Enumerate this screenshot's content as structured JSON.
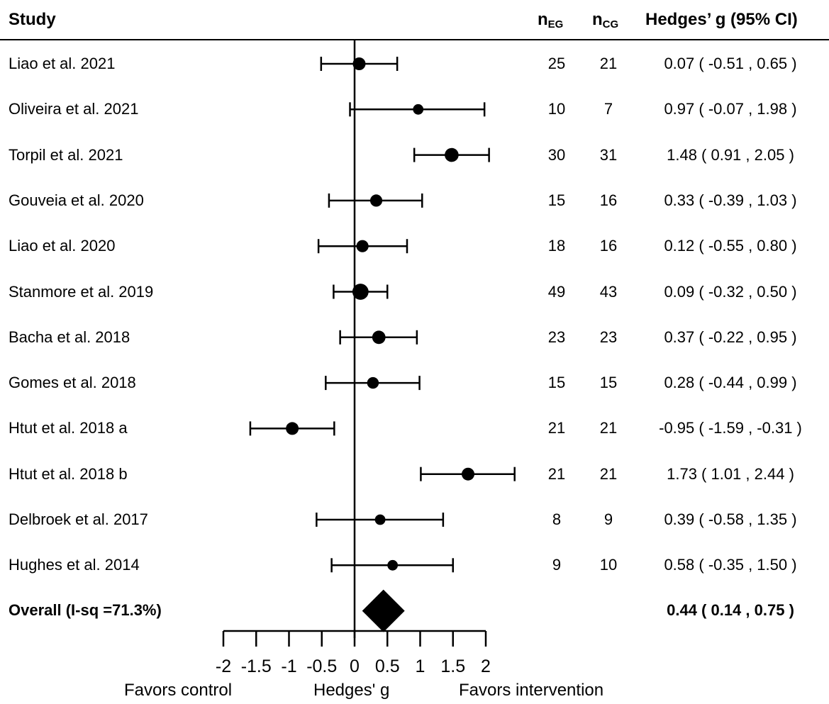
{
  "chart_data": {
    "type": "forest",
    "headers": {
      "study": "Study",
      "n_eg": {
        "base": "n",
        "sub": "EG"
      },
      "n_cg": {
        "base": "n",
        "sub": "CG"
      },
      "effect": "Hedges’ g (95% CI)"
    },
    "studies": [
      {
        "study": "Liao et al. 2021",
        "n_eg": "25",
        "n_cg": "21",
        "g": 0.07,
        "lo": -0.51,
        "hi": 0.65,
        "ci_text": "0.07 ( -0.51 ,  0.65 )",
        "weight": 1.0
      },
      {
        "study": "Oliveira et al. 2021",
        "n_eg": "10",
        "n_cg": "7",
        "g": 0.97,
        "lo": -0.07,
        "hi": 1.98,
        "ci_text": "0.97 ( -0.07 ,  1.98 )",
        "weight": 0.8
      },
      {
        "study": "Torpil et al. 2021",
        "n_eg": "30",
        "n_cg": "31",
        "g": 1.48,
        "lo": 0.91,
        "hi": 2.05,
        "ci_text": "1.48 ( 0.91 ,  2.05 )",
        "weight": 1.1
      },
      {
        "study": "Gouveia et al. 2020",
        "n_eg": "15",
        "n_cg": "16",
        "g": 0.33,
        "lo": -0.39,
        "hi": 1.03,
        "ci_text": "0.33 ( -0.39 ,  1.03 )",
        "weight": 0.95
      },
      {
        "study": "Liao et al. 2020",
        "n_eg": "18",
        "n_cg": "16",
        "g": 0.12,
        "lo": -0.55,
        "hi": 0.8,
        "ci_text": "0.12 ( -0.55 ,  0.80 )",
        "weight": 0.95
      },
      {
        "study": "Stanmore et al. 2019",
        "n_eg": "49",
        "n_cg": "43",
        "g": 0.09,
        "lo": -0.32,
        "hi": 0.5,
        "ci_text": "0.09 ( -0.32 ,  0.50 )",
        "weight": 1.3
      },
      {
        "study": "Bacha et al. 2018",
        "n_eg": "23",
        "n_cg": "23",
        "g": 0.37,
        "lo": -0.22,
        "hi": 0.95,
        "ci_text": "0.37 ( -0.22 ,  0.95 )",
        "weight": 1.05
      },
      {
        "study": "Gomes et al. 2018",
        "n_eg": "15",
        "n_cg": "15",
        "g": 0.28,
        "lo": -0.44,
        "hi": 0.99,
        "ci_text": "0.28 ( -0.44 ,  0.99 )",
        "weight": 0.9
      },
      {
        "study": "Htut et al. 2018 a",
        "n_eg": "21",
        "n_cg": "21",
        "g": -0.95,
        "lo": -1.59,
        "hi": -0.31,
        "ci_text": "-0.95 ( -1.59 ,  -0.31 )",
        "weight": 1.0
      },
      {
        "study": "Htut et al. 2018 b",
        "n_eg": "21",
        "n_cg": "21",
        "g": 1.73,
        "lo": 1.01,
        "hi": 2.44,
        "ci_text": "1.73 ( 1.01 ,  2.44 )",
        "weight": 1.0
      },
      {
        "study": "Delbroek et al. 2017",
        "n_eg": "8",
        "n_cg": "9",
        "g": 0.39,
        "lo": -0.58,
        "hi": 1.35,
        "ci_text": "0.39 ( -0.58 ,  1.35 )",
        "weight": 0.8
      },
      {
        "study": "Hughes et al. 2014",
        "n_eg": "9",
        "n_cg": "10",
        "g": 0.58,
        "lo": -0.35,
        "hi": 1.5,
        "ci_text": "0.58 ( -0.35 ,  1.50 )",
        "weight": 0.8
      }
    ],
    "overall": {
      "label": "Overall (I-sq =71.3%)",
      "g": 0.44,
      "lo": 0.14,
      "hi": 0.75,
      "ci_text": "0.44 ( 0.14 ,  0.75 )"
    },
    "x_axis": {
      "ticks": [
        -2,
        -1.5,
        -1,
        -0.5,
        0,
        0.5,
        1,
        1.5,
        2
      ],
      "tick_labels": [
        "-2",
        "-1.5",
        "-1",
        "-0.5",
        "0",
        "0.5",
        "1",
        "1.5",
        "2"
      ],
      "label": "Hedges' g",
      "left_label": "Favors control",
      "right_label": "Favors intervention",
      "xlim": [
        -2,
        2
      ]
    },
    "colors": {
      "ink": "#000000",
      "background": "#ffffff"
    }
  }
}
